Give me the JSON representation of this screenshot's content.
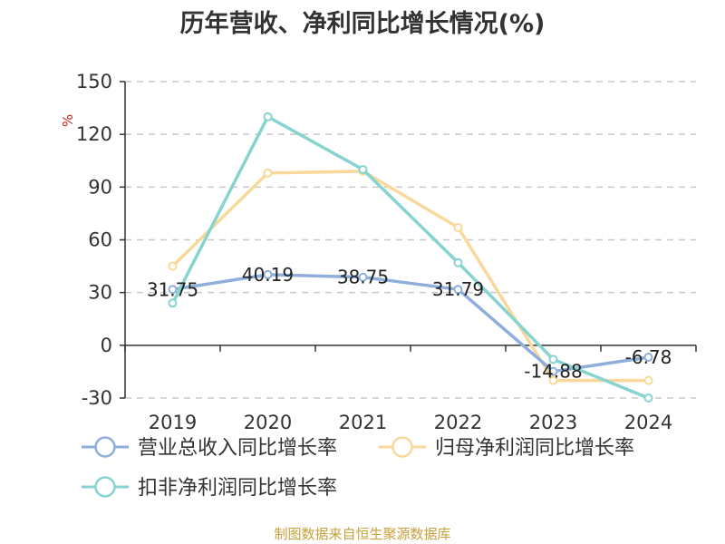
{
  "source_note": "制图数据来自恒生聚源数据库",
  "chart_data": {
    "type": "line",
    "title": "历年营收、净利同比增长情况(%)",
    "ylabel": "%",
    "categories": [
      "2019",
      "2020",
      "2021",
      "2022",
      "2023",
      "2024"
    ],
    "ylim": [
      -30,
      150
    ],
    "yticks": [
      -30,
      0,
      30,
      60,
      90,
      120,
      150
    ],
    "grid": true,
    "legend_position": "bottom-left",
    "series": [
      {
        "name": "营业总收入同比增长率",
        "color": "#8eaedb",
        "values": [
          31.75,
          40.19,
          38.75,
          31.79,
          -14.88,
          -6.78
        ],
        "labels": [
          "31.75",
          "40.19",
          "38.75",
          "31.79",
          "-14.88",
          "-6.78"
        ]
      },
      {
        "name": "归母净利润同比增长率",
        "color": "#f9d89b",
        "values": [
          45,
          98,
          99,
          67,
          -20,
          -20
        ]
      },
      {
        "name": "扣非净利润同比增长率",
        "color": "#86d3d0",
        "values": [
          24,
          130,
          100,
          47,
          -8,
          -30
        ]
      }
    ]
  }
}
